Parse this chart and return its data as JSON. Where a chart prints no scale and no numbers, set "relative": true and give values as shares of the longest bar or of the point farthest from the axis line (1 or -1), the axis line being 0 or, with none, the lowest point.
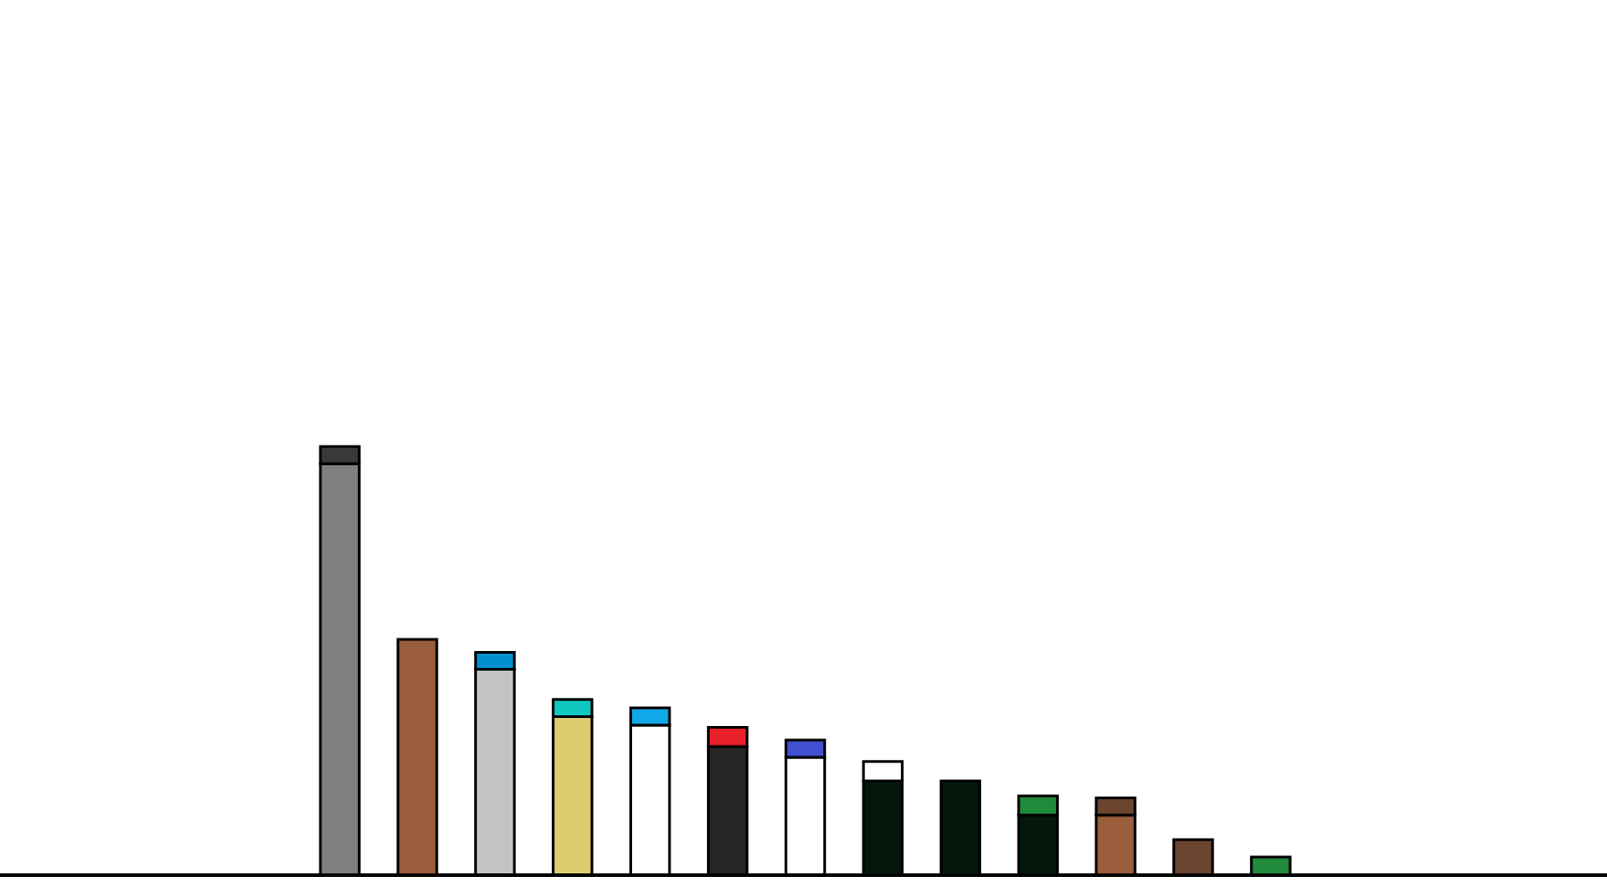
{
  "chart_data": {
    "type": "bar",
    "stacked": true,
    "relative": true,
    "legend": false,
    "grid": false,
    "categories": [
      null,
      null,
      null,
      null,
      null,
      null,
      null,
      null,
      null,
      null,
      null,
      null,
      null
    ],
    "series": [
      {
        "values": [
          0.96,
          0.55,
          0.48,
          0.37,
          0.35,
          0.3,
          0.275,
          0.22,
          0.22,
          0.14,
          0.14,
          0.083,
          0.042
        ],
        "colors": [
          "#808080",
          "#9a5e3c",
          "#c4c4c4",
          "#e0cc70",
          "#ffffff",
          "#252525",
          "#ffffff",
          "#03170b",
          "#03170b",
          "#03170b",
          "#9a5e3c",
          "#6b4530",
          "#218a3c"
        ]
      },
      {
        "values": [
          0.04,
          null,
          0.04,
          0.04,
          0.04,
          0.045,
          0.04,
          0.045,
          null,
          0.045,
          0.04,
          null,
          null
        ],
        "colors": [
          "#3a3a3a",
          null,
          "#0090d0",
          "#10c8c0",
          "#10a8e8",
          "#e82028",
          "#4050d0",
          "#ffffff",
          null,
          "#208a3c",
          "#6b4530",
          null,
          null
        ]
      }
    ]
  }
}
